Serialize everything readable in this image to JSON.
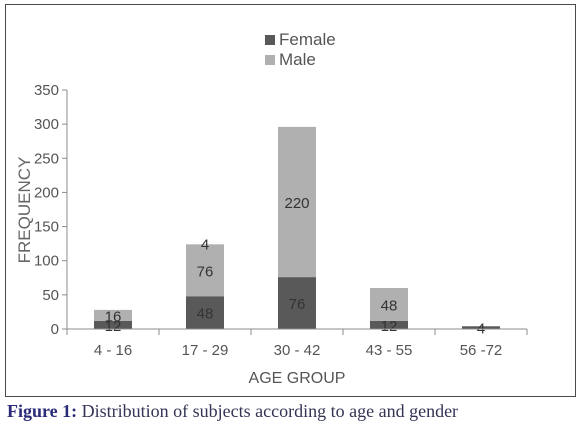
{
  "chart_data": {
    "type": "bar",
    "stacked": true,
    "categories": [
      "4 - 16",
      "17 - 29",
      "30 - 42",
      "43 - 55",
      "56 -72"
    ],
    "series": [
      {
        "name": "Female",
        "color": "#595959",
        "values": [
          12,
          48,
          76,
          12,
          4
        ],
        "labels": [
          "12",
          "48",
          "76",
          "12",
          "4"
        ]
      },
      {
        "name": "Male",
        "color": "#b0b0b0",
        "values": [
          16,
          76,
          220,
          48,
          0
        ],
        "labels": [
          "16",
          "76",
          "220",
          "48",
          ""
        ]
      }
    ],
    "top_labels": [
      "",
      "4",
      "",
      "",
      ""
    ],
    "xlabel": "AGE GROUP",
    "ylabel": "FREQUENCY",
    "ylim": [
      0,
      350
    ],
    "yticks": [
      0,
      50,
      100,
      150,
      200,
      250,
      300,
      350
    ],
    "grid": false,
    "legend_position": "top"
  },
  "caption": {
    "label": "Figure 1:",
    "text": "Distribution of subjects according to age and gender"
  }
}
